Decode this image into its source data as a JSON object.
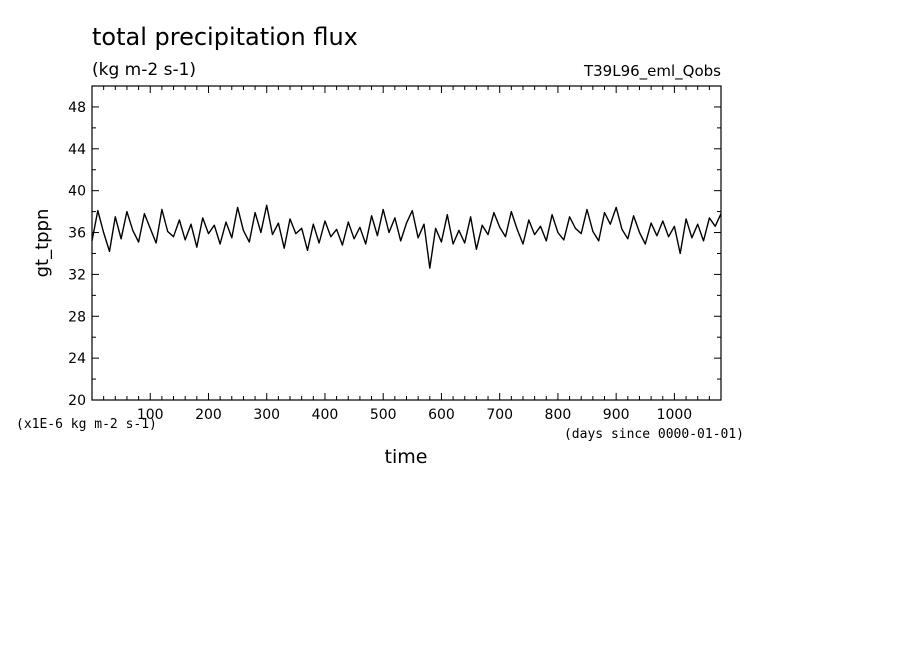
{
  "chart_data": {
    "type": "line",
    "title": "total precipitation flux",
    "subtitle": "(kg m-2 s-1)",
    "experiment": "T39L96_eml_Qobs",
    "xlabel": "time",
    "ylabel": "gt_tppn",
    "x_units": "(days since 0000-01-01)",
    "y_units": "(x1E-6 kg m-2 s-1)",
    "xlim": [
      0,
      1080
    ],
    "ylim": [
      20,
      50
    ],
    "x_ticks": [
      100,
      200,
      300,
      400,
      500,
      600,
      700,
      800,
      900,
      1000
    ],
    "y_ticks": [
      20,
      24,
      28,
      32,
      36,
      40,
      44,
      48
    ],
    "x_tick_labels": [
      "100",
      "200",
      "300",
      "400",
      "500",
      "600",
      "700",
      "800",
      "900",
      "1000"
    ],
    "y_tick_labels": [
      "20",
      "24",
      "28",
      "32",
      "36",
      "40",
      "44",
      "48"
    ],
    "grid": false,
    "line_color": "#000000",
    "series": [
      {
        "x": [
          0,
          10,
          20,
          30,
          40,
          50,
          60,
          70,
          80,
          90,
          100,
          110,
          120,
          130,
          140,
          150,
          160,
          170,
          180,
          190,
          200,
          210,
          220,
          230,
          240,
          250,
          260,
          270,
          280,
          290,
          300,
          310,
          320,
          330,
          340,
          350,
          360,
          370,
          380,
          390,
          400,
          410,
          420,
          430,
          440,
          450,
          460,
          470,
          480,
          490,
          500,
          510,
          520,
          530,
          540,
          550,
          560,
          570,
          580,
          590,
          600,
          610,
          620,
          630,
          640,
          650,
          660,
          670,
          680,
          690,
          700,
          710,
          720,
          730,
          740,
          750,
          760,
          770,
          780,
          790,
          800,
          810,
          820,
          830,
          840,
          850,
          860,
          870,
          880,
          890,
          900,
          910,
          920,
          930,
          940,
          950,
          960,
          970,
          980,
          990,
          1000,
          1010,
          1020,
          1030,
          1040,
          1050,
          1060,
          1070,
          1080
        ],
        "values": [
          35.2,
          38.1,
          36.0,
          34.2,
          37.5,
          35.4,
          38.0,
          36.2,
          35.1,
          37.8,
          36.4,
          35.0,
          38.2,
          36.1,
          35.6,
          37.2,
          35.3,
          36.8,
          34.6,
          37.4,
          35.9,
          36.7,
          34.9,
          37.0,
          35.5,
          38.4,
          36.2,
          35.1,
          37.9,
          36.0,
          38.6,
          35.8,
          36.9,
          34.5,
          37.3,
          35.9,
          36.4,
          34.3,
          36.8,
          35.0,
          37.1,
          35.6,
          36.3,
          34.8,
          37.0,
          35.4,
          36.5,
          34.9,
          37.6,
          35.7,
          38.2,
          36.0,
          37.4,
          35.2,
          36.9,
          38.1,
          35.5,
          36.8,
          32.6,
          36.4,
          35.1,
          37.7,
          34.9,
          36.2,
          35.0,
          37.5,
          34.4,
          36.7,
          35.8,
          37.9,
          36.5,
          35.6,
          38.0,
          36.3,
          34.9,
          37.2,
          35.8,
          36.6,
          35.2,
          37.7,
          36.0,
          35.3,
          37.5,
          36.4,
          35.9,
          38.2,
          36.1,
          35.2,
          37.9,
          36.8,
          38.4,
          36.3,
          35.4,
          37.6,
          36.0,
          34.9,
          36.9,
          35.7,
          37.1,
          35.6,
          36.6,
          34.0,
          37.3,
          35.5,
          36.8,
          35.2,
          37.4,
          36.6,
          37.8
        ]
      }
    ]
  }
}
